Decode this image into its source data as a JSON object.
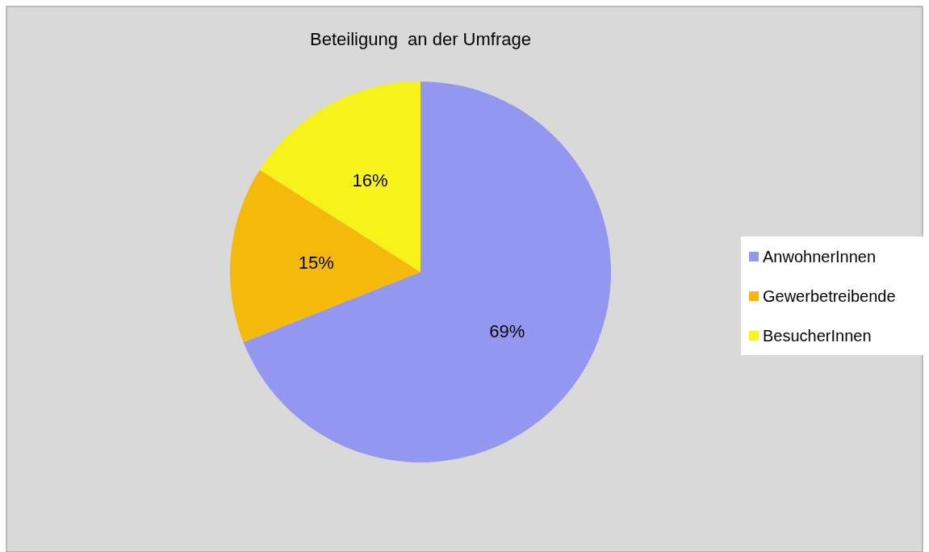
{
  "chart_data": {
    "type": "pie",
    "title": "Beteiligung  an der Umfrage",
    "categories": [
      "AnwohnerInnen",
      "Gewerbetreibende",
      "BesucherInnen"
    ],
    "values": [
      69,
      15,
      16
    ],
    "colors": [
      "#9497ef",
      "#f5b90a",
      "#f7f31a"
    ],
    "value_labels": [
      "69%",
      "15%",
      "16%"
    ],
    "legend": "right"
  }
}
